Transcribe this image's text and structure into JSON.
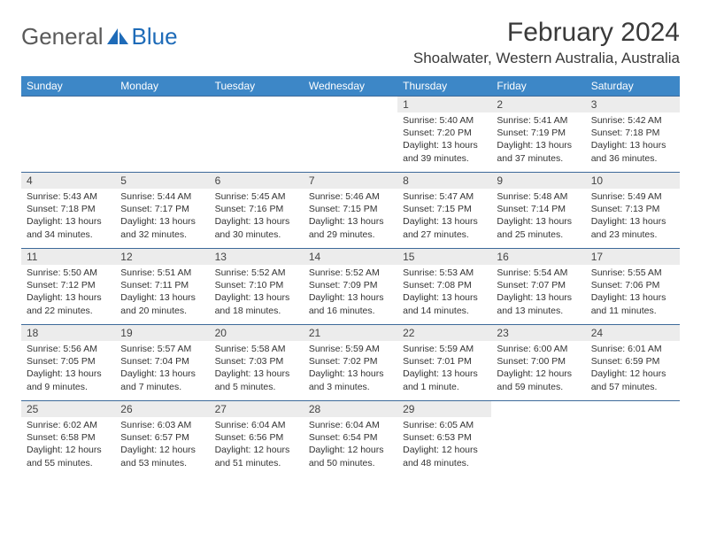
{
  "brand": {
    "name1": "General",
    "name2": "Blue",
    "logo_color": "#1e6bb8"
  },
  "header": {
    "month_title": "February 2024",
    "location": "Shoalwater, Western Australia, Australia"
  },
  "styling": {
    "header_bg": "#3d87c7",
    "header_text": "#ffffff",
    "row_border": "#3d6a9a",
    "daynum_bg": "#ececec",
    "body_bg": "#ffffff",
    "text_color": "#333333"
  },
  "weekdays": [
    "Sunday",
    "Monday",
    "Tuesday",
    "Wednesday",
    "Thursday",
    "Friday",
    "Saturday"
  ],
  "weeks": [
    [
      null,
      null,
      null,
      null,
      {
        "n": "1",
        "sunrise": "5:40 AM",
        "sunset": "7:20 PM",
        "daylight": "13 hours and 39 minutes."
      },
      {
        "n": "2",
        "sunrise": "5:41 AM",
        "sunset": "7:19 PM",
        "daylight": "13 hours and 37 minutes."
      },
      {
        "n": "3",
        "sunrise": "5:42 AM",
        "sunset": "7:18 PM",
        "daylight": "13 hours and 36 minutes."
      }
    ],
    [
      {
        "n": "4",
        "sunrise": "5:43 AM",
        "sunset": "7:18 PM",
        "daylight": "13 hours and 34 minutes."
      },
      {
        "n": "5",
        "sunrise": "5:44 AM",
        "sunset": "7:17 PM",
        "daylight": "13 hours and 32 minutes."
      },
      {
        "n": "6",
        "sunrise": "5:45 AM",
        "sunset": "7:16 PM",
        "daylight": "13 hours and 30 minutes."
      },
      {
        "n": "7",
        "sunrise": "5:46 AM",
        "sunset": "7:15 PM",
        "daylight": "13 hours and 29 minutes."
      },
      {
        "n": "8",
        "sunrise": "5:47 AM",
        "sunset": "7:15 PM",
        "daylight": "13 hours and 27 minutes."
      },
      {
        "n": "9",
        "sunrise": "5:48 AM",
        "sunset": "7:14 PM",
        "daylight": "13 hours and 25 minutes."
      },
      {
        "n": "10",
        "sunrise": "5:49 AM",
        "sunset": "7:13 PM",
        "daylight": "13 hours and 23 minutes."
      }
    ],
    [
      {
        "n": "11",
        "sunrise": "5:50 AM",
        "sunset": "7:12 PM",
        "daylight": "13 hours and 22 minutes."
      },
      {
        "n": "12",
        "sunrise": "5:51 AM",
        "sunset": "7:11 PM",
        "daylight": "13 hours and 20 minutes."
      },
      {
        "n": "13",
        "sunrise": "5:52 AM",
        "sunset": "7:10 PM",
        "daylight": "13 hours and 18 minutes."
      },
      {
        "n": "14",
        "sunrise": "5:52 AM",
        "sunset": "7:09 PM",
        "daylight": "13 hours and 16 minutes."
      },
      {
        "n": "15",
        "sunrise": "5:53 AM",
        "sunset": "7:08 PM",
        "daylight": "13 hours and 14 minutes."
      },
      {
        "n": "16",
        "sunrise": "5:54 AM",
        "sunset": "7:07 PM",
        "daylight": "13 hours and 13 minutes."
      },
      {
        "n": "17",
        "sunrise": "5:55 AM",
        "sunset": "7:06 PM",
        "daylight": "13 hours and 11 minutes."
      }
    ],
    [
      {
        "n": "18",
        "sunrise": "5:56 AM",
        "sunset": "7:05 PM",
        "daylight": "13 hours and 9 minutes."
      },
      {
        "n": "19",
        "sunrise": "5:57 AM",
        "sunset": "7:04 PM",
        "daylight": "13 hours and 7 minutes."
      },
      {
        "n": "20",
        "sunrise": "5:58 AM",
        "sunset": "7:03 PM",
        "daylight": "13 hours and 5 minutes."
      },
      {
        "n": "21",
        "sunrise": "5:59 AM",
        "sunset": "7:02 PM",
        "daylight": "13 hours and 3 minutes."
      },
      {
        "n": "22",
        "sunrise": "5:59 AM",
        "sunset": "7:01 PM",
        "daylight": "13 hours and 1 minute."
      },
      {
        "n": "23",
        "sunrise": "6:00 AM",
        "sunset": "7:00 PM",
        "daylight": "12 hours and 59 minutes."
      },
      {
        "n": "24",
        "sunrise": "6:01 AM",
        "sunset": "6:59 PM",
        "daylight": "12 hours and 57 minutes."
      }
    ],
    [
      {
        "n": "25",
        "sunrise": "6:02 AM",
        "sunset": "6:58 PM",
        "daylight": "12 hours and 55 minutes."
      },
      {
        "n": "26",
        "sunrise": "6:03 AM",
        "sunset": "6:57 PM",
        "daylight": "12 hours and 53 minutes."
      },
      {
        "n": "27",
        "sunrise": "6:04 AM",
        "sunset": "6:56 PM",
        "daylight": "12 hours and 51 minutes."
      },
      {
        "n": "28",
        "sunrise": "6:04 AM",
        "sunset": "6:54 PM",
        "daylight": "12 hours and 50 minutes."
      },
      {
        "n": "29",
        "sunrise": "6:05 AM",
        "sunset": "6:53 PM",
        "daylight": "12 hours and 48 minutes."
      },
      null,
      null
    ]
  ]
}
